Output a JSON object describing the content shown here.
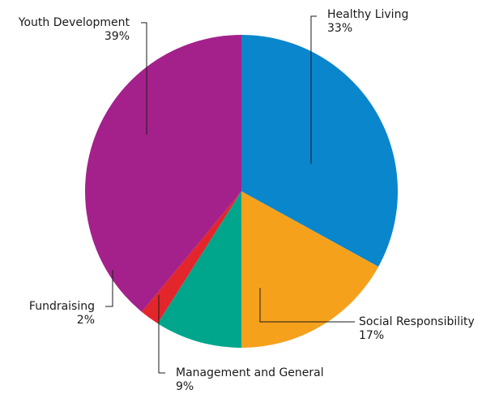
{
  "chart_data": {
    "type": "pie",
    "title": "",
    "start_angle_deg": 0,
    "direction": "clockwise",
    "slices": [
      {
        "label": "Healthy Living",
        "value": 33,
        "pct_label": "33%",
        "color": "#0a86cc"
      },
      {
        "label": "Social Responsibility",
        "value": 17,
        "pct_label": "17%",
        "color": "#f6a11c"
      },
      {
        "label": "Management and General",
        "value": 9,
        "pct_label": "9%",
        "color": "#00a68c"
      },
      {
        "label": "Fundraising",
        "value": 2,
        "pct_label": "2%",
        "color": "#e3262b"
      },
      {
        "label": "Youth Development",
        "value": 39,
        "pct_label": "39%",
        "color": "#a4218c"
      }
    ]
  }
}
